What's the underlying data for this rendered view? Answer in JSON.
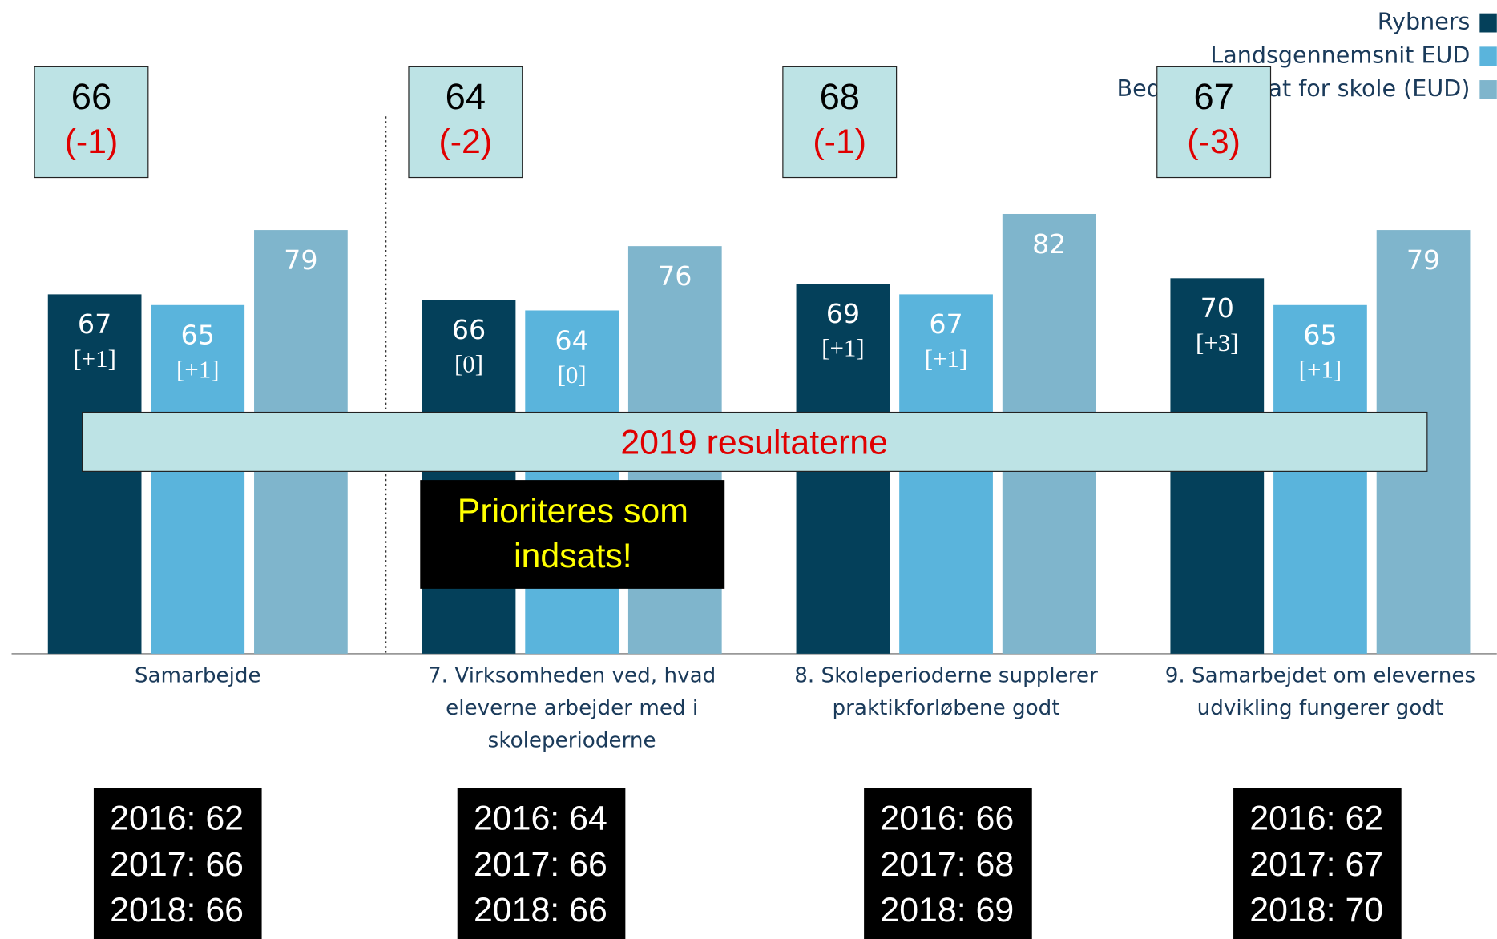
{
  "chart_data": {
    "type": "bar",
    "categories": [
      "Samarbejde",
      "7. Virksomheden ved, hvad eleverne arbejder med i skoleperioderne",
      "8. Skoleperioderne supplerer praktikforløbene godt",
      "9. Samarbejdet om elevernes udvikling fungerer godt"
    ],
    "series": [
      {
        "name": "Rybners",
        "color": "#04405a",
        "values": [
          67,
          66,
          69,
          70
        ],
        "changes": [
          "[+1]",
          "[0]",
          "[+1]",
          "[+3]"
        ]
      },
      {
        "name": "Landsgennemsnit EUD",
        "color": "#5ab4dc",
        "values": [
          65,
          64,
          67,
          65
        ],
        "changes": [
          "[+1]",
          "[0]",
          "[+1]",
          "[+1]"
        ]
      },
      {
        "name": "Bedste resultat for skole (EUD)",
        "color": "#7fb5cc",
        "values": [
          79,
          76,
          82,
          79
        ]
      }
    ],
    "ylim": [
      0,
      100
    ],
    "legend": "top-right",
    "top_boxes": [
      {
        "value": "66",
        "change": "(-1)"
      },
      {
        "value": "64",
        "change": "(-2)"
      },
      {
        "value": "68",
        "change": "(-1)"
      },
      {
        "value": "67",
        "change": "(-3)"
      }
    ],
    "banner": "2019 resultaterne",
    "callout": [
      "Prioriteres som",
      "indsats!"
    ],
    "history_boxes": [
      [
        "2016: 62",
        "2017: 66",
        "2018: 66"
      ],
      [
        "2016: 64",
        "2017: 66",
        "2018: 66"
      ],
      [
        "2016: 66",
        "2017: 68",
        "2018: 69"
      ],
      [
        "2016: 62",
        "2017: 67",
        "2018: 70"
      ]
    ]
  }
}
